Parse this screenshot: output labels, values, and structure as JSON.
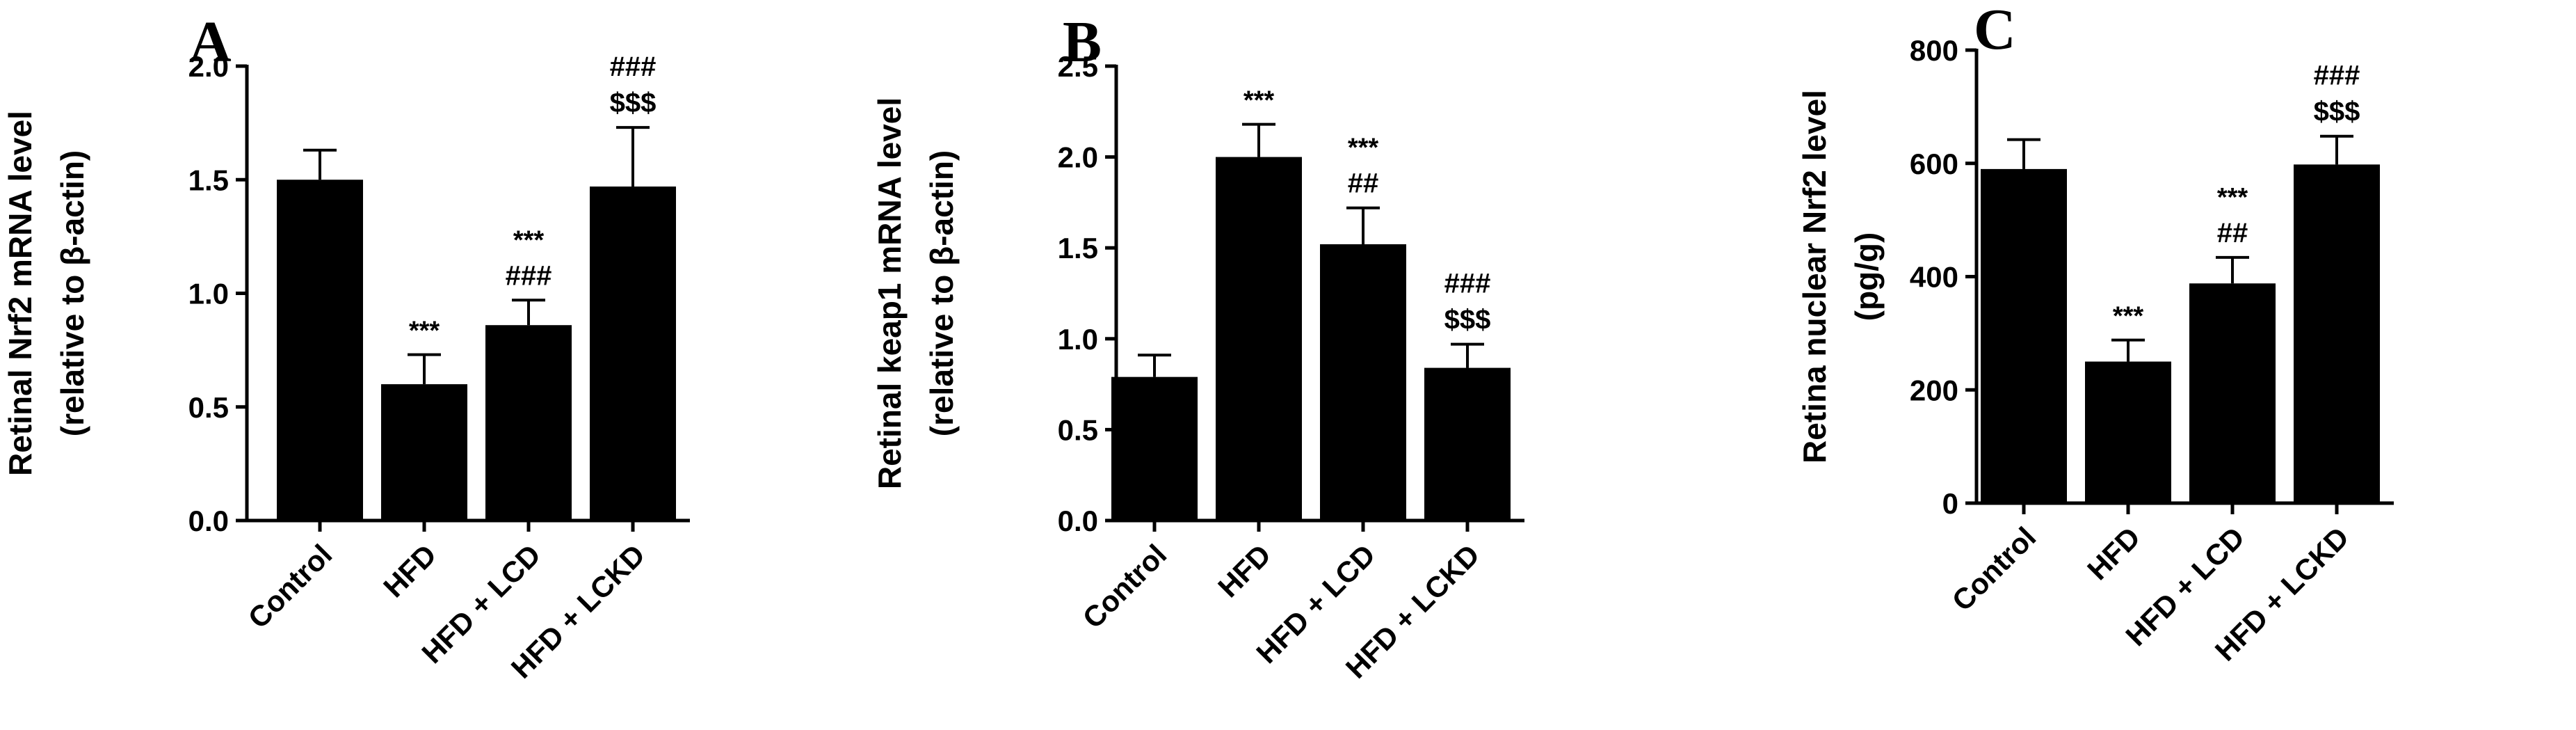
{
  "chart_data": [
    {
      "type": "bar",
      "panel_label": "A",
      "categories": [
        "Control",
        "HFD",
        "HFD + LCD",
        "HFD + LCKD"
      ],
      "values": [
        1.5,
        0.6,
        0.86,
        1.47
      ],
      "errors": [
        0.13,
        0.13,
        0.11,
        0.26
      ],
      "annotations": [
        [],
        [
          "***"
        ],
        [
          "***",
          "###"
        ],
        [
          "###",
          "$$$"
        ]
      ],
      "ylabel": [
        "Retinal Nrf2 mRNA level",
        "(relative to β-actin)"
      ],
      "ylim": [
        0,
        2.0
      ],
      "yticks": [
        "0.0",
        "0.5",
        "1.0",
        "1.5",
        "2.0"
      ],
      "grid": false,
      "bar_color": "#000000"
    },
    {
      "type": "bar",
      "panel_label": "B",
      "categories": [
        "Control",
        "HFD",
        "HFD + LCD",
        "HFD + LCKD"
      ],
      "values": [
        0.79,
        2.0,
        1.52,
        0.84
      ],
      "errors": [
        0.12,
        0.18,
        0.2,
        0.13
      ],
      "annotations": [
        [],
        [
          "***"
        ],
        [
          "***",
          "##"
        ],
        [
          "###",
          "$$$"
        ]
      ],
      "ylabel": [
        "Retinal keap1 mRNA level",
        "(relative to β-actin)"
      ],
      "ylim": [
        0,
        2.5
      ],
      "yticks": [
        "0.0",
        "0.5",
        "1.0",
        "1.5",
        "2.0",
        "2.5"
      ],
      "grid": false,
      "bar_color": "#000000"
    },
    {
      "type": "bar",
      "panel_label": "C",
      "categories": [
        "Control",
        "HFD",
        "HFD + LCD",
        "HFD + LCKD"
      ],
      "values": [
        590,
        250,
        388,
        598
      ],
      "errors": [
        52,
        38,
        46,
        50
      ],
      "annotations": [
        [],
        [
          "***"
        ],
        [
          "***",
          "##"
        ],
        [
          "###",
          "$$$"
        ]
      ],
      "ylabel": [
        "Retina nuclear Nrf2 level",
        "(pg/g)"
      ],
      "ylim": [
        0,
        800
      ],
      "yticks": [
        "0",
        "200",
        "400",
        "600",
        "800"
      ],
      "grid": false,
      "bar_color": "#000000"
    }
  ]
}
